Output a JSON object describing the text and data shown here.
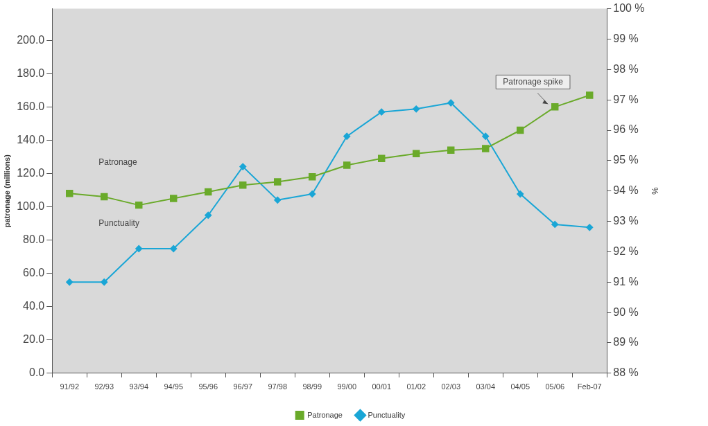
{
  "chart_data": {
    "type": "line",
    "ylabel": "patronage (millions)",
    "y2label": "%",
    "categories": [
      "91/92",
      "92/93",
      "93/94",
      "94/95",
      "95/96",
      "96/97",
      "97/98",
      "98/99",
      "99/00",
      "00/01",
      "01/02",
      "02/03",
      "03/04",
      "04/05",
      "05/06",
      "Feb-07"
    ],
    "series": [
      {
        "name": "Patronage",
        "color": "#6aaa2a",
        "marker": "square",
        "values": [
          108,
          106,
          101,
          105,
          109,
          113,
          115,
          118,
          125,
          129,
          132,
          134,
          135,
          146,
          160,
          167
        ]
      },
      {
        "name": "Punctuality",
        "color": "#1aa6d6",
        "marker": "diamond",
        "axis": "y2",
        "values": [
          91.0,
          91.0,
          92.1,
          92.1,
          93.2,
          94.8,
          93.7,
          93.9,
          95.8,
          96.6,
          96.7,
          96.9,
          95.8,
          93.9,
          92.9,
          92.8
        ]
      }
    ],
    "ylim": [
      0,
      219
    ],
    "yticks": [
      {
        "value": 0,
        "label": "0.0"
      },
      {
        "value": 20,
        "label": "20.0"
      },
      {
        "value": 40,
        "label": "40.0"
      },
      {
        "value": 60,
        "label": "60.0"
      },
      {
        "value": 80,
        "label": "80.0"
      },
      {
        "value": 100,
        "label": "100.0"
      },
      {
        "value": 120,
        "label": "120.0"
      },
      {
        "value": 140,
        "label": "140.0"
      },
      {
        "value": 160,
        "label": "160.0"
      },
      {
        "value": 180,
        "label": "180.0"
      },
      {
        "value": 200,
        "label": "200.0"
      }
    ],
    "y2lim": [
      88,
      100
    ],
    "y2ticks": [
      {
        "value": 88,
        "label": "88 %"
      },
      {
        "value": 89,
        "label": "89 %"
      },
      {
        "value": 90,
        "label": "90 %"
      },
      {
        "value": 91,
        "label": "91 %"
      },
      {
        "value": 92,
        "label": "92 %"
      },
      {
        "value": 93,
        "label": "93 %"
      },
      {
        "value": 94,
        "label": "94 %"
      },
      {
        "value": 95,
        "label": "95 %"
      },
      {
        "value": 96,
        "label": "96 %"
      },
      {
        "value": 97,
        "label": "97 %"
      },
      {
        "value": 98,
        "label": "98 %"
      },
      {
        "value": 99,
        "label": "99 %"
      },
      {
        "value": 100,
        "label": "100 %"
      }
    ],
    "annotations": [
      "Patronage",
      "Punctuality",
      {
        "text": "Patronage spike",
        "x": "05/06",
        "y": 160
      }
    ],
    "grid": false,
    "legend": "bottom",
    "line_style": "solid"
  }
}
